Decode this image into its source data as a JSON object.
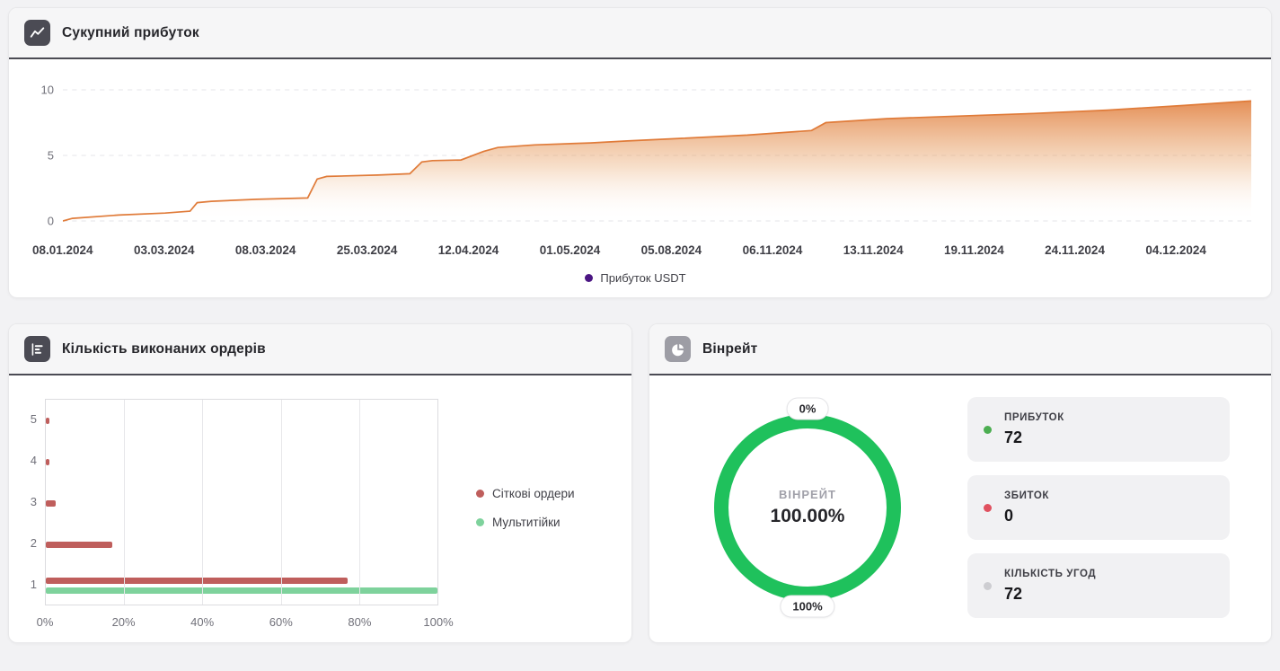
{
  "cumulative_card": {
    "title": "Сукупний прибуток"
  },
  "orders_card": {
    "title": "Кількість виконаних ордерів"
  },
  "winrate_card": {
    "title": "Вінрейт",
    "stats": [
      {
        "label": "ПРИБУТОК",
        "value": "72",
        "dot_color": "#4cae51"
      },
      {
        "label": "ЗБИТОК",
        "value": "0",
        "dot_color": "#e0515f"
      },
      {
        "label": "КІЛЬКІСТЬ УГОД",
        "value": "72",
        "dot_color": "#cdcdd1"
      }
    ]
  },
  "chart_data": [
    {
      "type": "area",
      "title": "Сукупний прибуток",
      "ylabel": "Прибуток USDT",
      "ylim": [
        0,
        10
      ],
      "y_ticks": [
        10,
        5,
        0
      ],
      "grid": "horizontal-dashed",
      "legend_position": "bottom-center",
      "legend": [
        {
          "label": "Прибуток USDT",
          "color": "#4b1683"
        }
      ],
      "x_labels": [
        "08.01.2024",
        "03.03.2024",
        "08.03.2024",
        "25.03.2024",
        "12.04.2024",
        "01.05.2024",
        "05.08.2024",
        "06.11.2024",
        "13.11.2024",
        "19.11.2024",
        "24.11.2024",
        "04.12.2024"
      ],
      "series": [
        {
          "name": "Прибуток USDT",
          "color": "#e07b39",
          "fill": "gradient-orange-to-transparent",
          "points": [
            [
              0,
              0
            ],
            [
              0.8,
              0.2
            ],
            [
              4.7,
              0.45
            ],
            [
              8.6,
              0.6
            ],
            [
              10.7,
              0.75
            ],
            [
              11.3,
              1.4
            ],
            [
              12.5,
              1.5
            ],
            [
              16.3,
              1.65
            ],
            [
              20.6,
              1.75
            ],
            [
              21.4,
              3.2
            ],
            [
              22.2,
              3.4
            ],
            [
              26.5,
              3.5
            ],
            [
              29.2,
              3.6
            ],
            [
              30.2,
              4.5
            ],
            [
              31.1,
              4.6
            ],
            [
              33.5,
              4.65
            ],
            [
              35.4,
              5.3
            ],
            [
              36.6,
              5.6
            ],
            [
              39.7,
              5.8
            ],
            [
              44.4,
              5.95
            ],
            [
              47.5,
              6.1
            ],
            [
              52.1,
              6.3
            ],
            [
              57.6,
              6.55
            ],
            [
              63.0,
              6.9
            ],
            [
              64.2,
              7.5
            ],
            [
              69.3,
              7.8
            ],
            [
              75.5,
              8.0
            ],
            [
              81.7,
              8.2
            ],
            [
              87.9,
              8.45
            ],
            [
              94.2,
              8.8
            ],
            [
              100,
              9.15
            ]
          ]
        }
      ]
    },
    {
      "type": "bar",
      "orientation": "horizontal",
      "title": "Кількість виконаних ордерів",
      "categories": [
        "5",
        "4",
        "3",
        "2",
        "1"
      ],
      "xlim": [
        0,
        100
      ],
      "x_ticks": [
        "0%",
        "20%",
        "40%",
        "60%",
        "80%",
        "100%"
      ],
      "grid": "vertical",
      "legend_position": "right",
      "series": [
        {
          "name": "Сіткові ордери",
          "color": "#bf5e5c",
          "values": [
            1,
            1,
            2.5,
            17,
            77
          ]
        },
        {
          "name": "Мультитійки",
          "color": "#7ed29c",
          "values": [
            0,
            0,
            0,
            0,
            100
          ]
        }
      ]
    },
    {
      "type": "donut",
      "title": "Вінрейт",
      "value": 100,
      "color": "#1fc15c",
      "label_top": "0%",
      "label_bottom": "100%",
      "center_label": "ВІНРЕЙТ",
      "center_value": "100.00%"
    }
  ]
}
